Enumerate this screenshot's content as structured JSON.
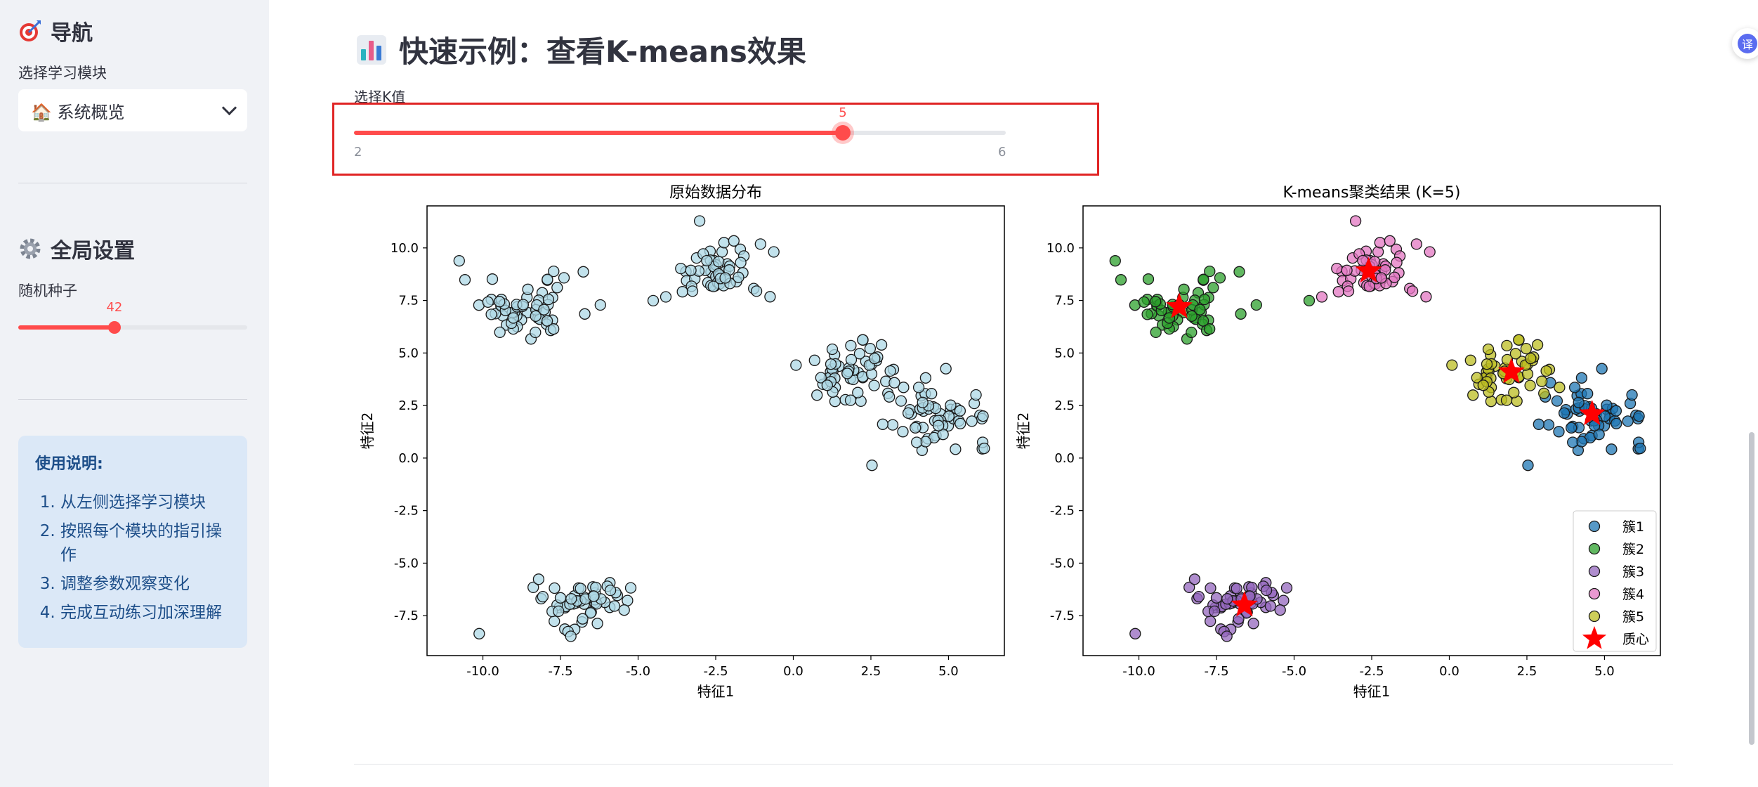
{
  "sidebar": {
    "nav_title": "导航",
    "module_label": "选择学习模块",
    "module_select": {
      "icon": "house-icon",
      "value": "🏠 系统概览"
    },
    "settings_title": "全局设置",
    "seed_label": "随机种子",
    "seed_value": "42",
    "seed_fraction": 0.42,
    "info": {
      "heading": "使用说明:",
      "steps": [
        "从左侧选择学习模块",
        "按照每个模块的指引操作",
        "调整参数观察变化",
        "完成互动练习加深理解"
      ]
    }
  },
  "main": {
    "title": "快速示例：查看K-means效果",
    "k_slider": {
      "label": "选择K值",
      "min": "2",
      "max": "6",
      "value": "5"
    }
  },
  "translate_label": "译",
  "colors": {
    "accent": "#ff4b4b",
    "highlight_box": "#e02424",
    "info_bg": "#dbe8f7",
    "info_text": "#1d4e89"
  },
  "chart_data": [
    {
      "type": "scatter",
      "title": "原始数据分布",
      "xlabel": "特征1",
      "ylabel": "特征2",
      "xlim": [
        -11.8,
        6.8
      ],
      "ylim": [
        -9.4,
        12
      ],
      "xticks": [
        "-10.0",
        "-7.5",
        "-5.0",
        "-2.5",
        "0.0",
        "2.5",
        "5.0"
      ],
      "yticks": [
        "-7.5",
        "-5.0",
        "-2.5",
        "0.0",
        "2.5",
        "5.0",
        "7.5",
        "10.0"
      ],
      "point_color": "#add8e6",
      "series": [
        {
          "center": [
            -8.6,
            7.2
          ],
          "count": 60,
          "spread": [
            1.05,
            0.75
          ]
        },
        {
          "center": [
            -2.6,
            8.8
          ],
          "count": 55,
          "spread": [
            0.8,
            0.75
          ]
        },
        {
          "center": [
            2.0,
            4.1
          ],
          "count": 55,
          "spread": [
            0.85,
            0.85
          ]
        },
        {
          "center": [
            4.7,
            2.1
          ],
          "count": 60,
          "spread": [
            0.8,
            0.7
          ]
        },
        {
          "center": [
            -6.7,
            -6.9
          ],
          "count": 55,
          "spread": [
            0.8,
            0.6
          ]
        }
      ]
    },
    {
      "type": "scatter",
      "title": "K-means聚类结果 (K=5)",
      "xlabel": "特征1",
      "ylabel": "特征2",
      "xlim": [
        -11.8,
        6.8
      ],
      "ylim": [
        -9.4,
        12
      ],
      "xticks": [
        "-10.0",
        "-7.5",
        "-5.0",
        "-2.5",
        "0.0",
        "2.5",
        "5.0"
      ],
      "yticks": [
        "-7.5",
        "-5.0",
        "-2.5",
        "0.0",
        "2.5",
        "5.0",
        "7.5",
        "10.0"
      ],
      "legend_position": "bottom-right",
      "centroid_label": "质心",
      "centroid_color": "#ff0000",
      "series": [
        {
          "name": "簇1",
          "color": "#1f77b4",
          "center": [
            4.7,
            2.1
          ],
          "count": 60,
          "spread": [
            0.8,
            0.7
          ]
        },
        {
          "name": "簇2",
          "color": "#2ca02c",
          "center": [
            -8.6,
            7.2
          ],
          "count": 60,
          "spread": [
            1.05,
            0.75
          ]
        },
        {
          "name": "簇3",
          "color": "#9467bd",
          "center": [
            -6.7,
            -6.9
          ],
          "count": 55,
          "spread": [
            0.8,
            0.6
          ]
        },
        {
          "name": "簇4",
          "color": "#e377c2",
          "center": [
            -2.6,
            8.8
          ],
          "count": 55,
          "spread": [
            0.8,
            0.75
          ]
        },
        {
          "name": "簇5",
          "color": "#bcbd22",
          "center": [
            2.0,
            4.1
          ],
          "count": 55,
          "spread": [
            0.85,
            0.85
          ]
        }
      ],
      "centroids": [
        [
          4.6,
          2.1
        ],
        [
          -8.7,
          7.2
        ],
        [
          -6.6,
          -7.0
        ],
        [
          -2.6,
          8.9
        ],
        [
          2.0,
          4.1
        ]
      ]
    }
  ]
}
